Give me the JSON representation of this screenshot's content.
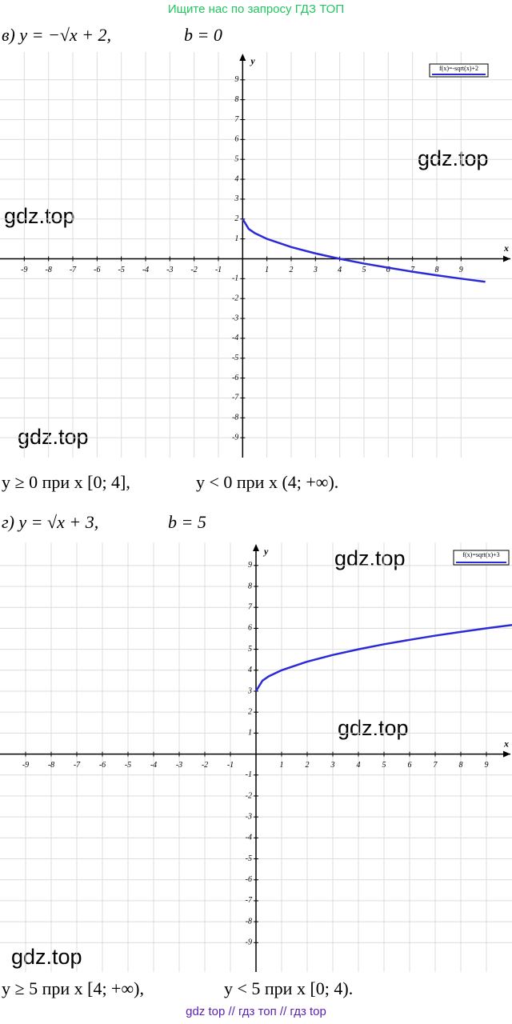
{
  "header": {
    "title": "Ищите нас по запросу ГДЗ ТОП"
  },
  "problems": [
    {
      "label": "в) y = −√x + 2,",
      "param": "b = 0",
      "answer_1": "y ≥ 0 при x [0; 4],",
      "answer_2": "y < 0 при x (4; +∞)."
    },
    {
      "label": "г) y = √x + 3,",
      "param": "b = 5",
      "answer_1": "y ≥ 5 при x [4; +∞),",
      "answer_2": "y < 5 при x [0; 4)."
    }
  ],
  "watermarks": [
    "gdz.top",
    "gdz.top",
    "gdz.top",
    "gdz.top",
    "gdz.top",
    "gdz.top"
  ],
  "chart_data": [
    {
      "type": "line",
      "x_label": "x",
      "y_label": "y",
      "grid": true,
      "x": [
        0,
        0.25,
        0.5,
        1,
        2,
        3,
        4,
        5,
        6,
        7,
        8,
        9,
        10
      ],
      "series": [
        {
          "name": "f(x)=-sqrt(x)+2",
          "color": "#2a2ad6",
          "values": [
            2,
            1.5,
            1.29,
            1,
            0.59,
            0.27,
            0,
            -0.24,
            -0.45,
            -0.65,
            -0.83,
            -1,
            -1.16
          ]
        }
      ],
      "xlim": [
        -10,
        11.1
      ],
      "ylim": [
        -10,
        10.4
      ],
      "xticks": [
        -9,
        -8,
        -7,
        -6,
        -5,
        -4,
        -3,
        -2,
        -1,
        1,
        2,
        3,
        4,
        5,
        6,
        7,
        8,
        9
      ],
      "yticks": [
        -9,
        -8,
        -7,
        -6,
        -5,
        -4,
        -3,
        -2,
        -1,
        1,
        2,
        3,
        4,
        5,
        6,
        7,
        8,
        9
      ]
    },
    {
      "type": "line",
      "x_label": "x",
      "y_label": "y",
      "grid": true,
      "x": [
        0,
        0.25,
        0.5,
        1,
        2,
        3,
        4,
        5,
        6,
        7,
        8,
        9,
        10
      ],
      "series": [
        {
          "name": "f(x)=sqrt(x)+3",
          "color": "#2a2ad6",
          "values": [
            3,
            3.5,
            3.71,
            4,
            4.41,
            4.73,
            5,
            5.24,
            5.45,
            5.65,
            5.83,
            6,
            6.16
          ]
        }
      ],
      "xlim": [
        -10,
        10
      ],
      "ylim": [
        -10.4,
        10.1
      ],
      "xticks": [
        -9,
        -8,
        -7,
        -6,
        -5,
        -4,
        -3,
        -2,
        -1,
        1,
        2,
        3,
        4,
        5,
        6,
        7,
        8,
        9
      ],
      "yticks": [
        -9,
        -8,
        -7,
        -6,
        -5,
        -4,
        -3,
        -2,
        -1,
        1,
        2,
        3,
        4,
        5,
        6,
        7,
        8,
        9
      ]
    }
  ]
}
